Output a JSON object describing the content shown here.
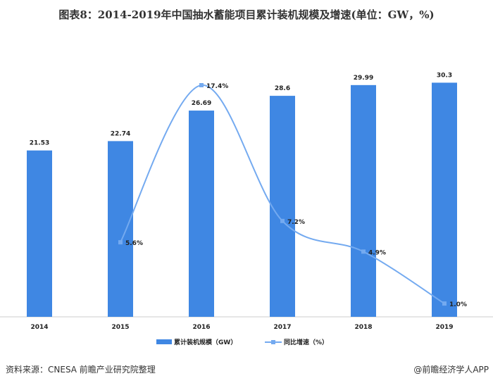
{
  "title": "图表8：2014-2019年中国抽水蓄能项目累计装机规模及增速(单位：GW，%)",
  "source": "资料来源：CNESA 前瞻产业研究院整理",
  "app_credit": "@前瞻经济学人APP",
  "chart_data": {
    "type": "bar+line",
    "categories": [
      "2014",
      "2015",
      "2016",
      "2017",
      "2018",
      "2019"
    ],
    "series": [
      {
        "name": "累计装机规模（GW）",
        "type": "bar",
        "axis": "left",
        "values": [
          21.53,
          22.74,
          26.69,
          28.6,
          29.99,
          30.3
        ],
        "labels": [
          "21.53",
          "22.74",
          "26.69",
          "28.6",
          "29.99",
          "30.3"
        ],
        "color": "#3f87e3"
      },
      {
        "name": "同比增速（%）",
        "type": "line",
        "axis": "right",
        "smooth": true,
        "values": [
          null,
          5.6,
          17.4,
          7.2,
          4.9,
          1.0
        ],
        "labels": [
          "",
          "5.6%",
          "17.4%",
          "7.2%",
          "4.9%",
          "1.0%"
        ],
        "color": "#74aaf0"
      }
    ],
    "ylim_left": [
      0,
      41
    ],
    "ylim_right": [
      0,
      23.8
    ],
    "grid": false,
    "legend": "bottom"
  }
}
